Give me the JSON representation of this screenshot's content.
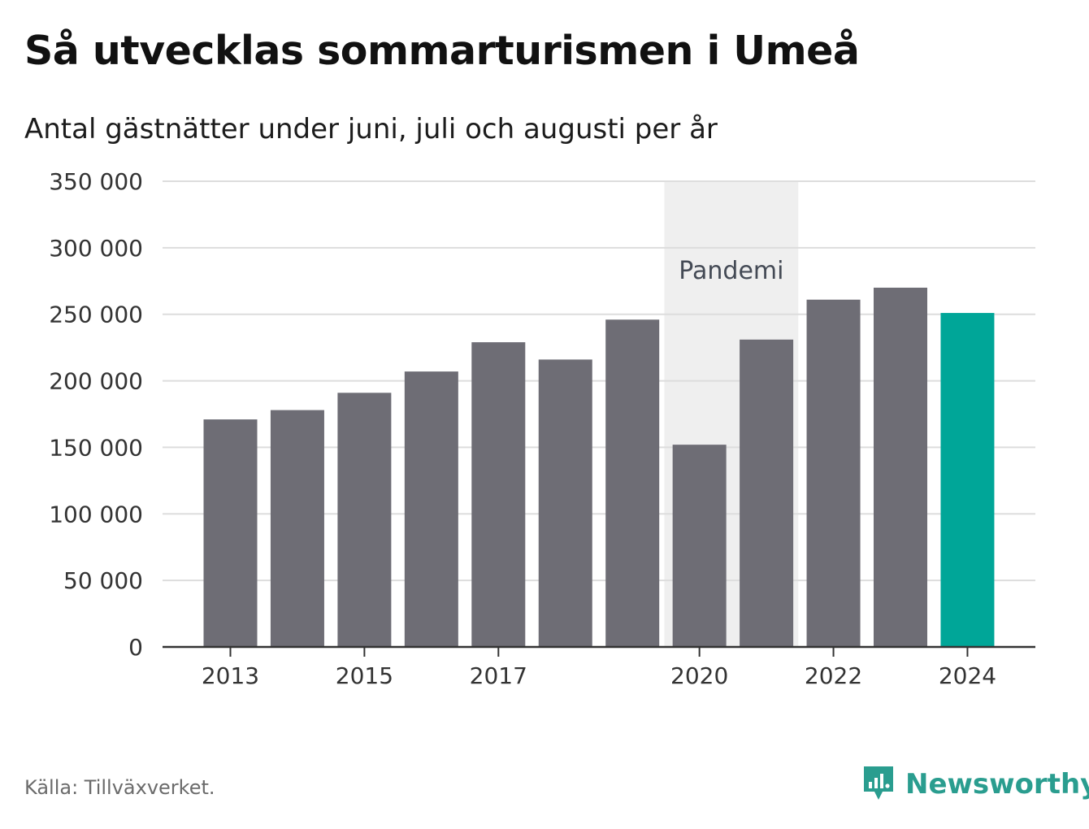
{
  "title": "Så utvecklas sommarturismen i Umeå",
  "subtitle": "Antal gästnätter under juni, juli och augusti per år",
  "source": "Källa: Tillväxverket.",
  "brand": "Newsworthy",
  "colors": {
    "bar": "#6e6d75",
    "highlight": "#00a698",
    "grid": "#dddddd",
    "band": "#efefef",
    "axis": "#333333",
    "text": "#333333",
    "brand": "#2a9d8f"
  },
  "chart_data": {
    "type": "bar",
    "categories": [
      "2013",
      "2014",
      "2015",
      "2016",
      "2017",
      "2018",
      "2019",
      "2020",
      "2021",
      "2022",
      "2023",
      "2024"
    ],
    "values": [
      171000,
      178000,
      191000,
      207000,
      229000,
      216000,
      246000,
      152000,
      231000,
      261000,
      270000,
      251000
    ],
    "highlight_category": "2024",
    "x_tick_labels": [
      "2013",
      "2015",
      "2017",
      "2020",
      "2022",
      "2024"
    ],
    "y_tick_labels": [
      "0",
      "50 000",
      "100 000",
      "150 000",
      "200 000",
      "250 000",
      "300 000",
      "350 000"
    ],
    "ylim": [
      0,
      350000
    ],
    "grid": true,
    "annotation": {
      "label": "Pandemi",
      "from": "2020",
      "to": "2021"
    },
    "title": "Så utvecklas sommarturismen i Umeå",
    "xlabel": "",
    "ylabel": ""
  }
}
